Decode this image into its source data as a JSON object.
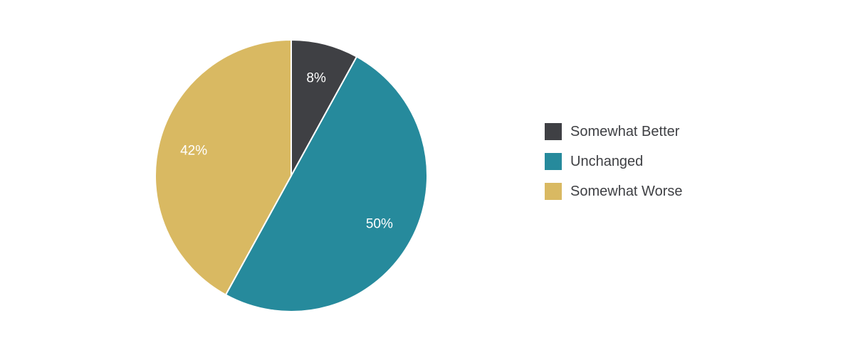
{
  "chart_data": {
    "type": "pie",
    "title": "",
    "slices": [
      {
        "name": "Somewhat Better",
        "value": 8,
        "label": "8%",
        "color": "#3f4044"
      },
      {
        "name": "Unchanged",
        "value": 50,
        "label": "50%",
        "color": "#268a9c"
      },
      {
        "name": "Somewhat Worse",
        "value": 42,
        "label": "42%",
        "color": "#d9b962"
      }
    ],
    "legend_position": "right",
    "start_angle": "12 o'clock",
    "direction": "clockwise"
  }
}
